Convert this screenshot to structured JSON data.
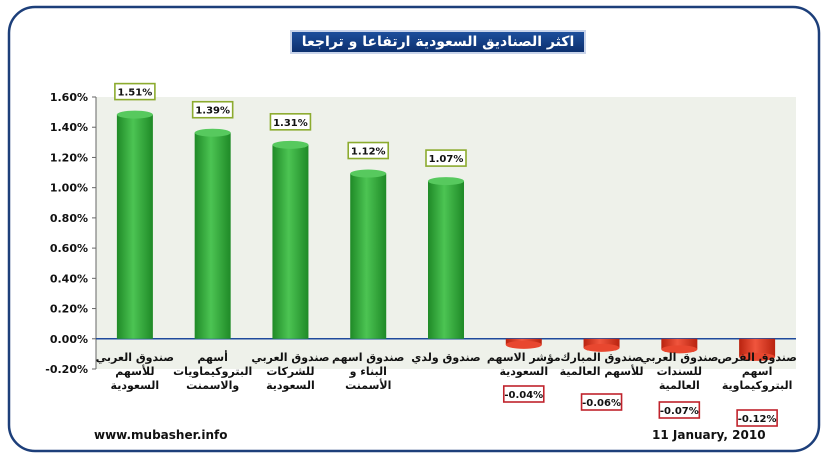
{
  "chart_data": {
    "type": "bar",
    "title": "اكثر الصناديق السعودية ارتفاعا و تراجعا",
    "categories": [
      [
        "صندوق العربي",
        "للأسهم",
        "السعودية"
      ],
      [
        "أسهم",
        "البتروكيماويات",
        "والاسمنت"
      ],
      [
        "صندوق العربي",
        "للشركات",
        "السعودية"
      ],
      [
        "صندوق اسهم",
        "البناء و",
        "الأسمنت"
      ],
      [
        "صندوق ولدي"
      ],
      [
        "مؤشر الاسهم",
        "السعودية"
      ],
      [
        "صندوق المبارك",
        "للأسهم العالمية"
      ],
      [
        "صندوق العربي",
        "للسندات",
        "العالمية"
      ],
      [
        "صندوق الفرص",
        "اسهم",
        "البتروكيماوية"
      ]
    ],
    "values": [
      1.51,
      1.39,
      1.31,
      1.12,
      1.07,
      -0.04,
      -0.06,
      -0.07,
      -0.12
    ],
    "data_labels": [
      "1.51%",
      "1.39%",
      "1.31%",
      "1.12%",
      "1.07%",
      "-0.04%",
      "-0.06%",
      "-0.07%",
      "-0.12%"
    ],
    "ylim": [
      -0.2,
      1.6
    ],
    "yticks": [
      "1.60%",
      "1.40%",
      "1.20%",
      "1.00%",
      "0.80%",
      "0.60%",
      "0.40%",
      "0.20%",
      "0.00%",
      "-0.20%"
    ],
    "colors": {
      "positive": "#2fa836",
      "negative": "#e0351f",
      "plot_bg": "#eef1ea",
      "pos_label_border": "#8cab2f",
      "neg_label_border": "#c0232c"
    },
    "grid": false
  },
  "footer": {
    "website": "www.mubasher.info",
    "date": "11 January, 2010"
  },
  "colors": {
    "frame_border": "#1d3f7a",
    "title_bg": "#12397f"
  }
}
